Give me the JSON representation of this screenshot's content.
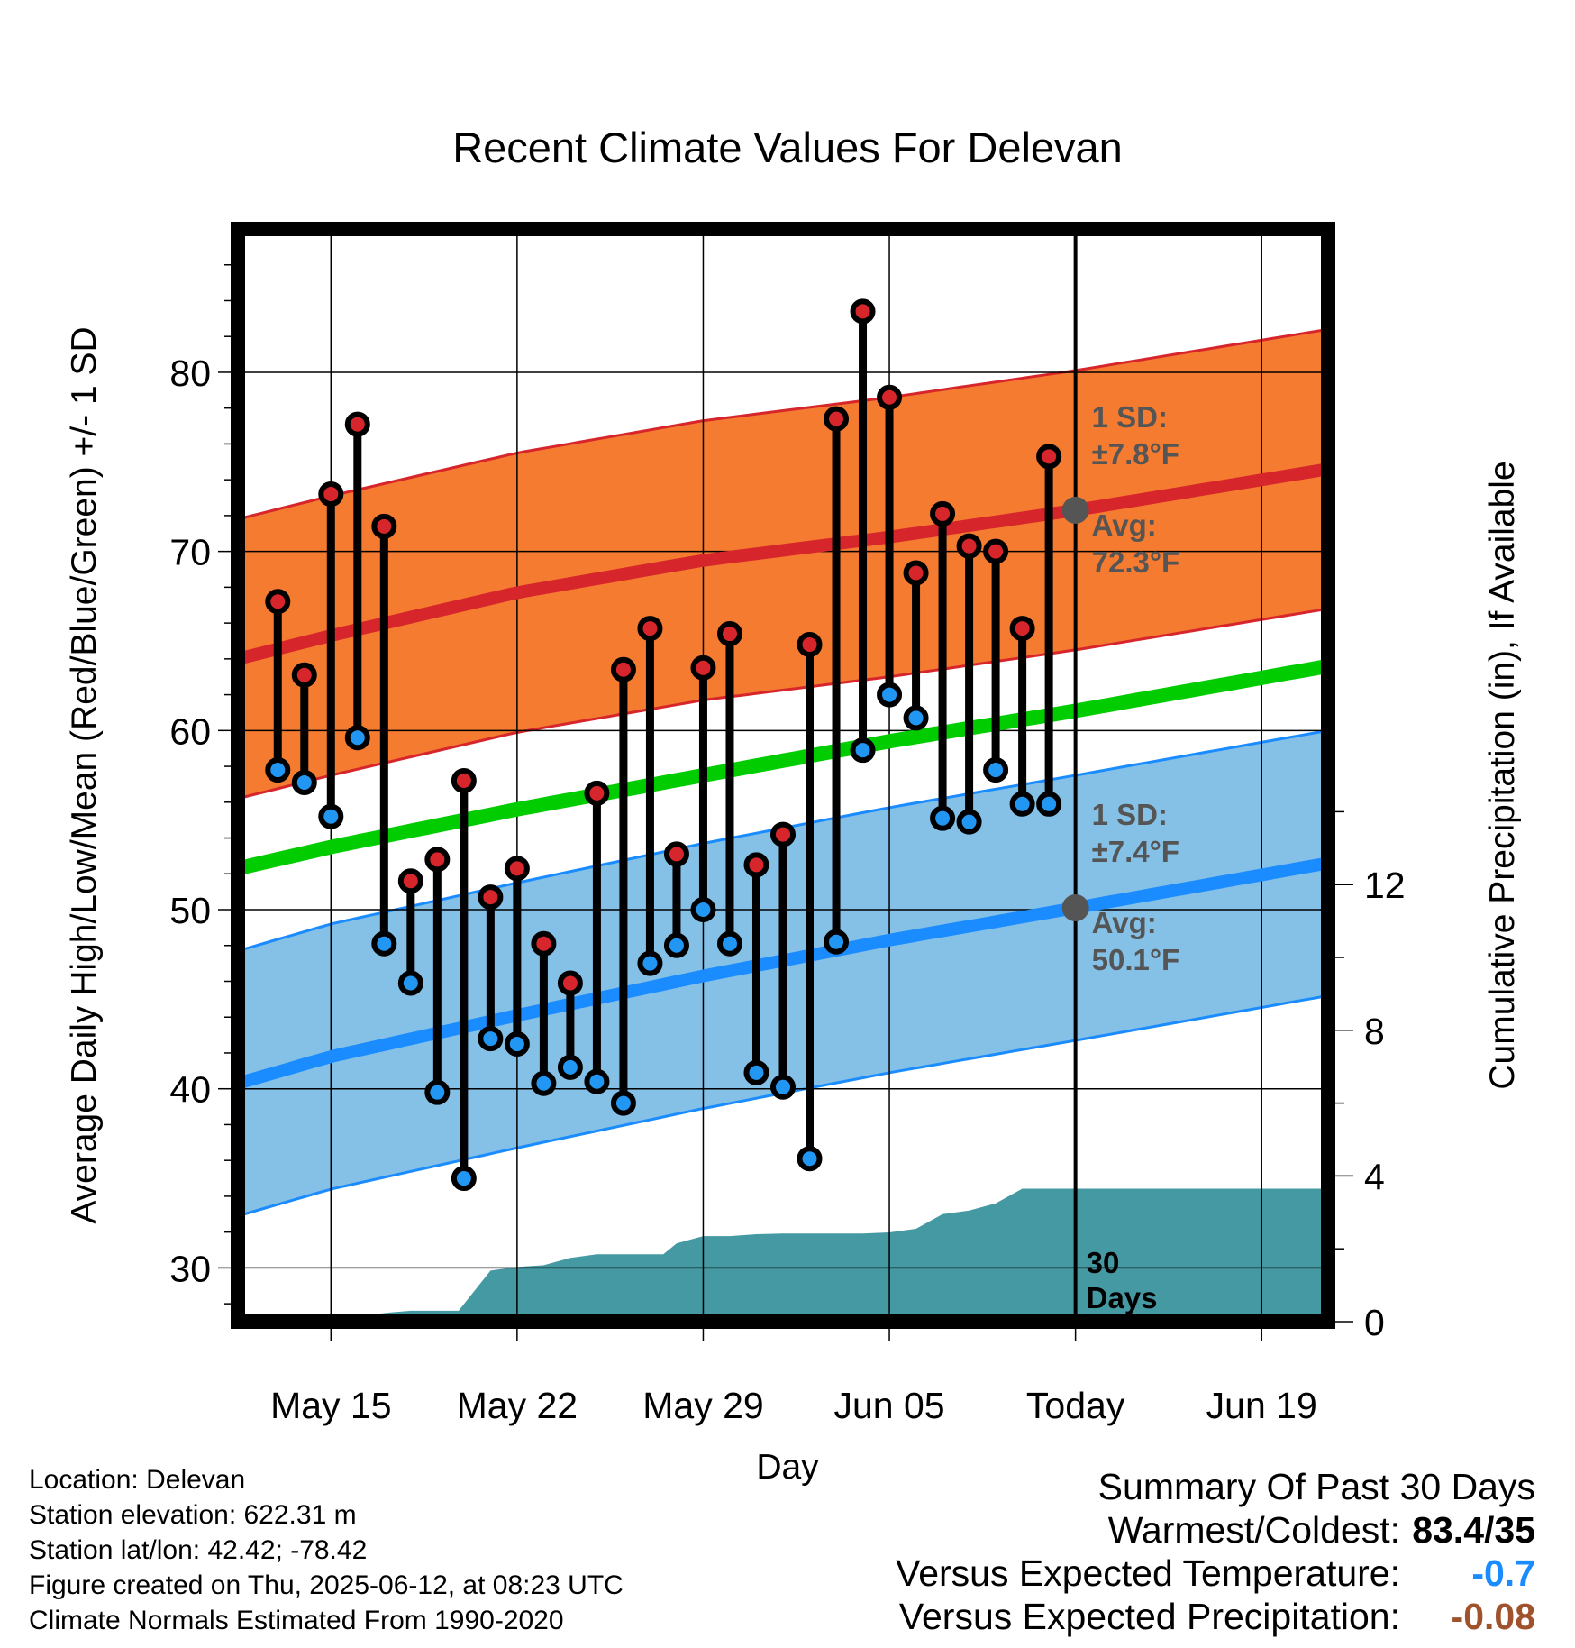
{
  "chart_data": {
    "type": "line",
    "title": "Recent Climate Values For Delevan",
    "xlabel": "Day",
    "ylabel": "Average Daily High/Low/Mean (Red/Blue/Green) +/- 1 SD",
    "y2label": "Cumulative Precipitation (in), If Available",
    "ylim": [
      27,
      88
    ],
    "y2lim": [
      0,
      30
    ],
    "xlim": [
      -3.5,
      37.5
    ],
    "yticks": [
      30,
      40,
      50,
      60,
      70,
      80
    ],
    "y2ticks": [
      0,
      4,
      8,
      12
    ],
    "xticks": [
      {
        "day": 0,
        "label": "May 15"
      },
      {
        "day": 7,
        "label": "May 22"
      },
      {
        "day": 14,
        "label": "May 29"
      },
      {
        "day": 21,
        "label": "Jun 05"
      },
      {
        "day": 28,
        "label": "Today"
      },
      {
        "day": 35,
        "label": "Jun 19"
      }
    ],
    "today_day": 28,
    "today_label": "30\nDays",
    "days": [
      -2,
      -1,
      0,
      1,
      2,
      3,
      4,
      5,
      6,
      7,
      8,
      9,
      10,
      11,
      12,
      13,
      14,
      15,
      16,
      17,
      18,
      19,
      20,
      21,
      22,
      23,
      24,
      25,
      26,
      27
    ],
    "highs": [
      67.2,
      63.1,
      73.2,
      77.1,
      71.4,
      51.6,
      52.8,
      57.2,
      50.7,
      52.3,
      48.1,
      45.9,
      56.5,
      63.4,
      65.7,
      53.1,
      63.5,
      65.4,
      52.5,
      54.2,
      64.8,
      77.4,
      83.4,
      78.6,
      68.8,
      72.1,
      70.3,
      70.0,
      65.7,
      75.3
    ],
    "lows": [
      57.8,
      57.1,
      55.2,
      59.6,
      48.1,
      45.9,
      39.8,
      35.0,
      42.8,
      42.5,
      40.3,
      41.2,
      40.4,
      39.2,
      47.0,
      48.0,
      50.0,
      48.1,
      40.9,
      40.1,
      36.1,
      48.2,
      58.9,
      62.0,
      60.7,
      55.1,
      54.9,
      57.8,
      55.9,
      55.9
    ],
    "normals": {
      "days": [
        -3.5,
        0,
        7,
        14,
        21,
        28,
        37.5
      ],
      "avg_high": [
        64.0,
        65.3,
        67.7,
        69.5,
        70.8,
        72.3,
        74.6
      ],
      "avg_low": [
        40.3,
        41.8,
        44.1,
        46.3,
        48.3,
        50.1,
        52.6
      ],
      "avg_mean": [
        52.3,
        53.5,
        55.6,
        57.5,
        59.4,
        61.1,
        63.6
      ],
      "high_sd": 7.8,
      "low_sd": 7.4
    },
    "precip": {
      "days": [
        -3.5,
        0,
        1,
        2.2,
        3,
        4,
        4.8,
        6,
        7,
        8,
        9,
        10,
        12.5,
        13,
        14,
        15,
        16,
        17,
        18,
        19,
        20,
        21,
        22,
        23,
        24,
        25,
        26,
        27,
        28,
        37.5
      ],
      "cumulative": [
        0,
        0,
        0.15,
        0.25,
        0.3,
        0.3,
        0.3,
        1.4,
        1.5,
        1.55,
        1.75,
        1.85,
        1.85,
        2.15,
        2.35,
        2.35,
        2.4,
        2.42,
        2.42,
        2.42,
        2.42,
        2.45,
        2.55,
        2.95,
        3.05,
        3.25,
        3.65,
        3.65,
        3.65,
        3.65
      ]
    },
    "annotations": {
      "high_sd_text": [
        "1 SD:",
        "±7.8°F"
      ],
      "high_avg_text": [
        "Avg:",
        "72.3°F"
      ],
      "low_sd_text": [
        "1 SD:",
        "±7.4°F"
      ],
      "low_avg_text": [
        "Avg:",
        "50.1°F"
      ]
    },
    "colors": {
      "high_band": "#f47b30",
      "high_line": "#d7262b",
      "low_band": "#85c1e6",
      "low_line": "#1b8cff",
      "mean_line": "#00cc00",
      "precip": "#4599a2",
      "high_marker": "#d7262b",
      "low_marker": "#2196f3",
      "annotation": "#555555"
    }
  },
  "info": {
    "location": "Location: Delevan",
    "elevation": "Station elevation: 622.31 m",
    "latlon": "Station lat/lon: 42.42; -78.42",
    "created": "Figure created on Thu, 2025-06-12, at 08:23 UTC",
    "normals": "Climate Normals Estimated From 1990-2020"
  },
  "summary": {
    "title": "Summary Of Past 30 Days",
    "warmest_label": "Warmest/Coldest:",
    "warmest_value": "83.4/35",
    "temp_label": "Versus Expected Temperature:",
    "temp_value": "-0.7",
    "temp_color": "#1b8cff",
    "precip_label": "Versus Expected Precipitation:",
    "precip_value": "-0.08",
    "precip_color": "#a0522d"
  }
}
